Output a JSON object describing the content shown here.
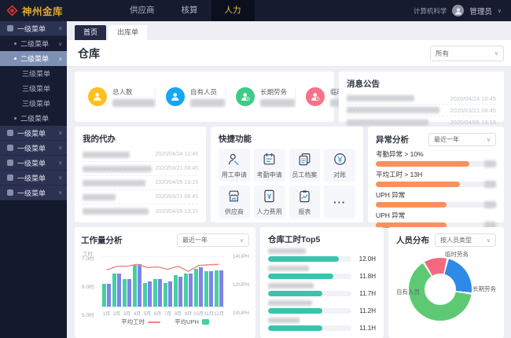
{
  "topbar": {
    "logo_text": "神州金库",
    "nav": [
      {
        "label": "供应商",
        "active": false
      },
      {
        "label": "核算",
        "active": false
      },
      {
        "label": "人力",
        "active": true
      }
    ],
    "department": "计算机科学",
    "username": "管理员"
  },
  "sidebar": {
    "items": [
      {
        "label": "一级菜单",
        "level": 1,
        "caret": "up",
        "selected": false
      },
      {
        "label": "二级菜单",
        "level": 2,
        "caret": "down",
        "selected": false
      },
      {
        "label": "二级菜单",
        "level": 2,
        "caret": "up",
        "selected": true
      },
      {
        "label": "三级菜单",
        "level": 3,
        "caret": "",
        "selected": false
      },
      {
        "label": "三级菜单",
        "level": 3,
        "caret": "",
        "selected": false
      },
      {
        "label": "三级菜单",
        "level": 3,
        "caret": "",
        "selected": false
      },
      {
        "label": "二级菜单",
        "level": 2,
        "caret": "",
        "selected": false
      },
      {
        "label": "一级菜单",
        "level": 1,
        "caret": "down",
        "selected": false
      },
      {
        "label": "一级菜单",
        "level": 1,
        "caret": "down",
        "selected": false
      },
      {
        "label": "一级菜单",
        "level": 1,
        "caret": "down",
        "selected": false
      },
      {
        "label": "一级菜单",
        "level": 1,
        "caret": "down",
        "selected": false
      },
      {
        "label": "一级菜单",
        "level": 1,
        "caret": "down",
        "selected": false
      }
    ]
  },
  "tabs": [
    {
      "label": "首页",
      "active": true
    },
    {
      "label": "出库单",
      "active": false
    }
  ],
  "page": {
    "title": "仓库",
    "filter_all": "所有"
  },
  "stats": {
    "items": [
      {
        "label": "总人数",
        "color": "#fdc01e",
        "icon": "person-icon",
        "badge": ""
      },
      {
        "label": "自有人员",
        "color": "#13a7f5",
        "icon": "person-icon",
        "badge": ""
      },
      {
        "label": "长期劳务",
        "color": "#3fcb87",
        "icon": "person-check-icon",
        "badge": "check"
      },
      {
        "label": "临时劳务",
        "color": "#f8718a",
        "icon": "person-alert-icon",
        "badge": "alert"
      }
    ]
  },
  "announcements": {
    "title": "消息公告",
    "items": [
      {
        "time": "2020/04/24 10:45",
        "redacted_w": 86
      },
      {
        "time": "2020/03/21 08:45",
        "redacted_w": 118
      },
      {
        "time": "2020/04/05 13:15",
        "redacted_w": 104
      }
    ]
  },
  "todo": {
    "title": "我的代办",
    "items": [
      {
        "time": "2020/04/24 10:45",
        "redacted_w": 60
      },
      {
        "time": "2020/03/21 08:45",
        "redacted_w": 88
      },
      {
        "time": "2020/04/05 13:15",
        "redacted_w": 80
      },
      {
        "time": "2020/03/21 08:45",
        "redacted_w": 42
      },
      {
        "time": "2020/04/05 13:15",
        "redacted_w": 84
      }
    ]
  },
  "quick": {
    "title": "快捷功能",
    "items": [
      {
        "label": "用工申请",
        "icon": "worker-apply-icon"
      },
      {
        "label": "考勤申请",
        "icon": "attendance-apply-icon"
      },
      {
        "label": "员工档案",
        "icon": "employee-files-icon"
      },
      {
        "label": "对账",
        "icon": "reconcile-icon"
      },
      {
        "label": "供应商",
        "icon": "supplier-icon"
      },
      {
        "label": "人力费用",
        "icon": "hr-cost-icon"
      },
      {
        "label": "报表",
        "icon": "report-icon"
      },
      {
        "label": "···",
        "icon": "more-icon"
      }
    ]
  },
  "anomaly": {
    "title": "异常分析",
    "filter": "最近一年",
    "bar_color": "#f9915d"
  },
  "workload": {
    "title": "工作量分析",
    "filter": "最近一年",
    "legend": [
      {
        "label": "平均工时",
        "swatch": "line",
        "color": "#ef8585"
      },
      {
        "label": "平均UPH",
        "swatch": "box",
        "color": "#46cfa2"
      }
    ]
  },
  "top5": {
    "title": "仓库工时Top5",
    "redacted_ws": [
      48,
      52,
      58,
      56,
      40
    ]
  },
  "distribution": {
    "title": "人员分布",
    "filter": "按人员类型"
  },
  "chart_data": [
    {
      "id": "workload-analysis",
      "type": "bar",
      "title": "工作量分析",
      "categories": [
        "1月",
        "2月",
        "3月",
        "4月",
        "5月",
        "6月",
        "7月",
        "8月",
        "9月",
        "10月",
        "11月",
        "12月"
      ],
      "series": [
        {
          "name": "平均UPH",
          "type": "bar",
          "color": "#46cfa2",
          "values": [
            11.8,
            12.6,
            12.2,
            13.3,
            11.9,
            12.2,
            11.9,
            12.5,
            12.6,
            13.0,
            12.8,
            12.9
          ]
        },
        {
          "name": "",
          "type": "bar",
          "color": "#7d85ea",
          "values": [
            11.8,
            12.6,
            12.2,
            13.4,
            12.0,
            12.2,
            12.0,
            12.4,
            12.6,
            13.1,
            12.8,
            12.9
          ]
        },
        {
          "name": "平均工时",
          "type": "line",
          "color": "#ef8585",
          "values": [
            6.45,
            6.6,
            6.6,
            6.68,
            6.55,
            6.58,
            6.48,
            6.6,
            6.4,
            6.63,
            6.66,
            6.68
          ]
        }
      ],
      "left_axis": {
        "title": "工时",
        "ticks": [
          "7.0时",
          "6.0时",
          "5.0时"
        ],
        "range": [
          5,
          7
        ]
      },
      "right_axis": {
        "ticks": [
          "14UPH",
          "12UPH",
          "10UPH"
        ],
        "range": [
          10,
          14
        ]
      },
      "legend_position": "bottom",
      "grid": true
    },
    {
      "id": "warehouse-hours-top5",
      "type": "bar",
      "orientation": "horizontal",
      "title": "仓库工时Top5",
      "value_labels": [
        "12.0H",
        "11.8H",
        "11.7H",
        "11.2H",
        "11.1H"
      ],
      "values": [
        12.0,
        11.8,
        11.7,
        11.2,
        11.1
      ],
      "bar_pcts": [
        85,
        78,
        65,
        65,
        65
      ],
      "color": "#3bc3ad"
    },
    {
      "id": "personnel-distribution",
      "type": "pie",
      "title": "人员分布",
      "donut": true,
      "slices": [
        {
          "label": "临时劳务",
          "pct": 12,
          "color": "#f5697f"
        },
        {
          "label": "长期劳务",
          "pct": 23,
          "color": "#2e8ae6"
        },
        {
          "label": "自有人员",
          "pct": 65,
          "color": "#5dca73"
        }
      ]
    },
    {
      "id": "anomaly-analysis",
      "type": "bar",
      "orientation": "horizontal",
      "title": "异常分析",
      "categories": [
        "考勤异常 > 10%",
        "平均工时 > 13H",
        "UPH 异常",
        "UPH 异常"
      ],
      "bar_pcts": [
        78,
        70,
        59,
        59
      ],
      "color": "#f9915d"
    }
  ]
}
